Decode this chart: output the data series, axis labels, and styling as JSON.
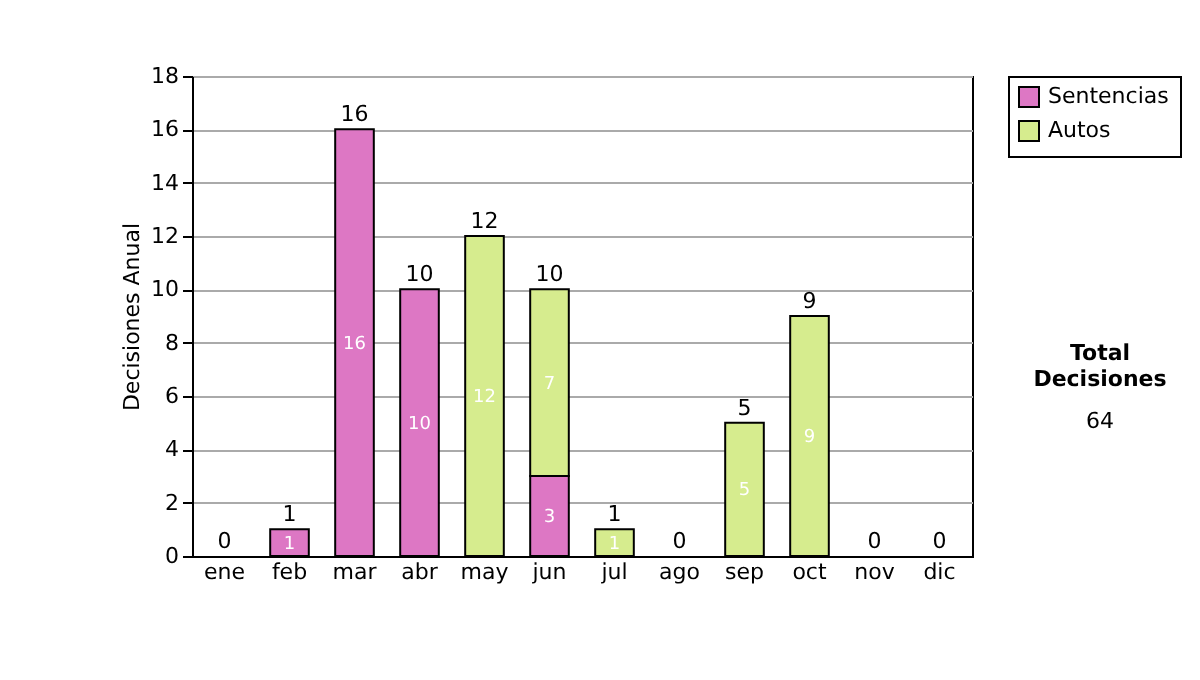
{
  "chart_data": {
    "type": "bar",
    "stacked": true,
    "ylabel": "Decisiones Anual",
    "categories": [
      "ene",
      "feb",
      "mar",
      "abr",
      "may",
      "jun",
      "jul",
      "ago",
      "sep",
      "oct",
      "nov",
      "dic"
    ],
    "series": [
      {
        "name": "Sentencias",
        "color": "#dd77c4",
        "values": [
          0,
          1,
          16,
          10,
          0,
          3,
          0,
          0,
          0,
          0,
          0,
          0
        ],
        "value_labels": [
          null,
          "1",
          "16",
          "10",
          null,
          "3",
          null,
          null,
          null,
          null,
          null,
          null
        ]
      },
      {
        "name": "Autos",
        "color": "#d6ec8e",
        "values": [
          0,
          0,
          0,
          0,
          12,
          7,
          1,
          0,
          5,
          9,
          0,
          0
        ],
        "value_labels": [
          null,
          null,
          null,
          null,
          "12",
          "7",
          "1",
          null,
          "5",
          "9",
          null,
          null
        ]
      }
    ],
    "totals": [
      "0",
      "1",
      "16",
      "10",
      "12",
      "10",
      "1",
      "0",
      "5",
      "9",
      "0",
      "0"
    ],
    "ylim": [
      0,
      18
    ],
    "yticks": [
      0,
      2,
      4,
      6,
      8,
      10,
      12,
      14,
      16,
      18
    ],
    "grid": "y",
    "legend": "right",
    "annotations": [
      "Total Decisiones",
      "64"
    ]
  }
}
